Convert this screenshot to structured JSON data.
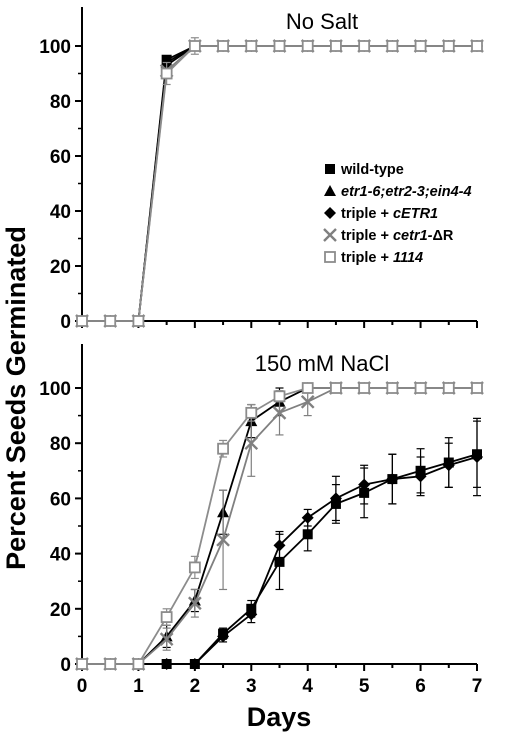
{
  "figure": {
    "ylabel": "Percent Seeds Germinated",
    "xlabel": "Days",
    "legend": [
      {
        "key": "wt",
        "parts": [
          {
            "t": "wild-type",
            "i": false
          }
        ]
      },
      {
        "key": "triple",
        "parts": [
          {
            "t": "etr1-6;etr2-3;ein4-4",
            "i": true
          }
        ]
      },
      {
        "key": "cETR1",
        "parts": [
          {
            "t": "triple + ",
            "i": false
          },
          {
            "t": "cETR1",
            "i": true
          }
        ]
      },
      {
        "key": "dR",
        "parts": [
          {
            "t": "triple + ",
            "i": false
          },
          {
            "t": "cetr1-",
            "i": true
          },
          {
            "t": "ΔR",
            "i": false
          }
        ]
      },
      {
        "key": "1114",
        "parts": [
          {
            "t": "triple + ",
            "i": false
          },
          {
            "t": "1114",
            "i": true
          }
        ]
      }
    ]
  },
  "chart_data": [
    {
      "type": "line",
      "title": "No Salt",
      "xlabel": "",
      "ylabel": "Percent Seeds Germinated",
      "xlim": [
        0,
        7
      ],
      "ylim": [
        0,
        100
      ],
      "xticks": [],
      "yticks": [
        0,
        20,
        40,
        60,
        80,
        100
      ],
      "legend_position": "center-right",
      "series": [
        {
          "name": "wild-type",
          "marker": "square-filled",
          "color": "#000000",
          "x": [
            0,
            0.5,
            1,
            1.5,
            2,
            2.5,
            3,
            3.5,
            4,
            4.5,
            5,
            5.5,
            6,
            6.5,
            7
          ],
          "y": [
            0,
            0,
            0,
            95,
            100,
            100,
            100,
            100,
            100,
            100,
            100,
            100,
            100,
            100,
            100
          ]
        },
        {
          "name": "etr1-6;etr2-3;ein4-4",
          "marker": "triangle-filled",
          "color": "#000000",
          "x": [
            0,
            0.5,
            1,
            1.5,
            2,
            2.5,
            3,
            3.5,
            4,
            4.5,
            5,
            5.5,
            6,
            6.5,
            7
          ],
          "y": [
            0,
            0,
            0,
            94,
            100,
            100,
            100,
            100,
            100,
            100,
            100,
            100,
            100,
            100,
            100
          ]
        },
        {
          "name": "triple + cETR1",
          "marker": "diamond-filled",
          "color": "#000000",
          "x": [
            0,
            0.5,
            1,
            1.5,
            2,
            2.5,
            3,
            3.5,
            4,
            4.5,
            5,
            5.5,
            6,
            6.5,
            7
          ],
          "y": [
            0,
            0,
            0,
            93,
            100,
            100,
            100,
            100,
            100,
            100,
            100,
            100,
            100,
            100,
            100
          ]
        },
        {
          "name": "triple + cetr1-ΔR",
          "marker": "x",
          "color": "#808080",
          "x": [
            0,
            0.5,
            1,
            1.5,
            2,
            2.5,
            3,
            3.5,
            4,
            4.5,
            5,
            5.5,
            6,
            6.5,
            7
          ],
          "y": [
            0,
            0,
            0,
            91,
            100,
            100,
            100,
            100,
            100,
            100,
            100,
            100,
            100,
            100,
            100
          ]
        },
        {
          "name": "triple + 1114",
          "marker": "square-open",
          "color": "#8c8c8c",
          "x": [
            0,
            0.5,
            1,
            1.5,
            2,
            2.5,
            3,
            3.5,
            4,
            4.5,
            5,
            5.5,
            6,
            6.5,
            7
          ],
          "y": [
            0,
            0,
            0,
            90,
            100,
            100,
            100,
            100,
            100,
            100,
            100,
            100,
            100,
            100,
            100
          ],
          "err": [
            0,
            0,
            0,
            4,
            3,
            0,
            0,
            0,
            0,
            0,
            0,
            0,
            0,
            0,
            0
          ]
        }
      ]
    },
    {
      "type": "line",
      "title": "150 mM NaCl",
      "xlabel": "Days",
      "ylabel": "Percent Seeds Germinated",
      "xlim": [
        0,
        7
      ],
      "ylim": [
        0,
        100
      ],
      "xticks": [
        0,
        1,
        2,
        3,
        4,
        5,
        6,
        7
      ],
      "yticks": [
        0,
        20,
        40,
        60,
        80,
        100
      ],
      "series": [
        {
          "name": "wild-type",
          "marker": "square-filled",
          "color": "#000000",
          "x": [
            0,
            0.5,
            1,
            1.5,
            2,
            2.5,
            3,
            3.5,
            4,
            4.5,
            5,
            5.5,
            6,
            6.5,
            7
          ],
          "y": [
            0,
            0,
            0,
            0,
            0,
            11,
            20,
            37,
            47,
            58,
            62,
            67,
            70,
            73,
            76
          ],
          "err": [
            0,
            0,
            0,
            0,
            0,
            2,
            3,
            10,
            6,
            7,
            9,
            9,
            8,
            9,
            12
          ]
        },
        {
          "name": "etr1-6;etr2-3;ein4-4",
          "marker": "triangle-filled",
          "color": "#000000",
          "x": [
            0,
            0.5,
            1,
            1.5,
            2,
            2.5,
            3,
            3.5,
            4,
            4.5,
            5,
            5.5,
            6,
            6.5,
            7
          ],
          "y": [
            0,
            0,
            0,
            10,
            23,
            55,
            88,
            95,
            100,
            100,
            100,
            100,
            100,
            100,
            100
          ],
          "err": [
            0,
            0,
            0,
            4,
            4,
            8,
            6,
            5,
            0,
            0,
            0,
            0,
            0,
            0,
            0
          ]
        },
        {
          "name": "triple + cETR1",
          "marker": "diamond-filled",
          "color": "#000000",
          "x": [
            0,
            0.5,
            1,
            1.5,
            2,
            2.5,
            3,
            3.5,
            4,
            4.5,
            5,
            5.5,
            6,
            6.5,
            7
          ],
          "y": [
            0,
            0,
            0,
            0,
            0,
            10,
            18,
            43,
            53,
            60,
            65,
            67,
            68,
            72,
            75
          ],
          "err": [
            0,
            0,
            0,
            0,
            0,
            2,
            3,
            5,
            3,
            8,
            7,
            9,
            7,
            8,
            14
          ]
        },
        {
          "name": "triple + cetr1-ΔR",
          "marker": "x",
          "color": "#808080",
          "x": [
            0,
            0.5,
            1,
            1.5,
            2,
            2.5,
            3,
            3.5,
            4,
            4.5,
            5,
            5.5,
            6,
            6.5,
            7
          ],
          "y": [
            0,
            0,
            0,
            9,
            22,
            45,
            80,
            91,
            95,
            100,
            100,
            100,
            100,
            100,
            100
          ],
          "err": [
            0,
            0,
            0,
            4,
            5,
            18,
            12,
            8,
            5,
            0,
            0,
            0,
            0,
            0,
            0
          ]
        },
        {
          "name": "triple + 1114",
          "marker": "square-open",
          "color": "#8c8c8c",
          "x": [
            0,
            0.5,
            1,
            1.5,
            2,
            2.5,
            3,
            3.5,
            4,
            4.5,
            5,
            5.5,
            6,
            6.5,
            7
          ],
          "y": [
            0,
            0,
            0,
            17,
            35,
            78,
            91,
            97,
            100,
            100,
            100,
            100,
            100,
            100,
            100
          ],
          "err": [
            0,
            0,
            0,
            3,
            4,
            3,
            3,
            2,
            0,
            0,
            0,
            0,
            0,
            0,
            0
          ]
        }
      ]
    }
  ]
}
